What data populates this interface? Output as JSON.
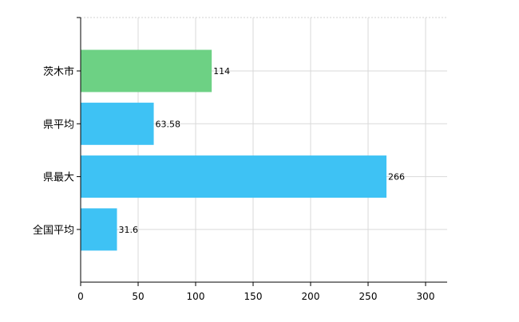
{
  "chart_data": {
    "type": "bar",
    "orientation": "horizontal",
    "categories": [
      "茨木市",
      "県平均",
      "県最大",
      "全国平均"
    ],
    "values": [
      114,
      63.58,
      266,
      31.6
    ],
    "data_labels": [
      "114",
      "63.58",
      "266",
      "31.6"
    ],
    "bar_colors": [
      "#6dd184",
      "#3ec2f4",
      "#3ec2f4",
      "#3ec2f4"
    ],
    "xlim": [
      0,
      320
    ],
    "x_ticks": [
      0,
      50,
      100,
      150,
      200,
      250,
      300
    ],
    "x_tick_labels": [
      "0",
      "50",
      "100",
      "150",
      "200",
      "250",
      "300"
    ],
    "grid": true,
    "legend": false
  }
}
